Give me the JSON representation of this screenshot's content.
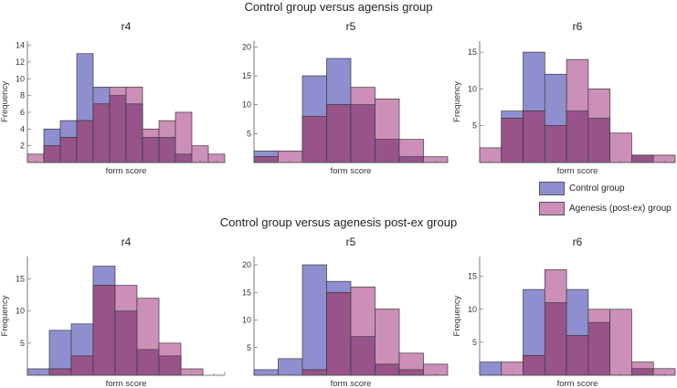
{
  "figure": {
    "top_title": "Control group versus agensis group",
    "bottom_title": "Control group versus agenesis post-ex group"
  },
  "colors": {
    "control": "#8f8fd0",
    "agenesis": "#cc8fb7",
    "overlap": "#98538b",
    "edge": "#3a3a3a"
  },
  "legend": {
    "control": "Control group",
    "agenesis": "Agenesis (post-ex) group"
  },
  "chart_data": [
    {
      "type": "bar",
      "panel": "top-left",
      "title": "r4",
      "xlabel": "form score",
      "ylabel": "Frequency",
      "ylim": [
        0,
        14.5
      ],
      "yticks": [
        2,
        4,
        6,
        8,
        10,
        12,
        14
      ],
      "bins": 12,
      "series": [
        {
          "name": "Control group",
          "values": [
            0,
            4,
            5,
            13,
            9,
            8,
            7,
            3,
            3,
            1,
            0,
            0
          ]
        },
        {
          "name": "Agenesis (post-ex) group",
          "values": [
            1,
            2,
            3,
            5,
            7,
            9,
            9,
            4,
            5,
            6,
            2,
            1
          ]
        }
      ]
    },
    {
      "type": "bar",
      "panel": "top-middle",
      "title": "r5",
      "xlabel": "form score",
      "ylabel": "",
      "ylim": [
        0,
        21
      ],
      "yticks": [
        5,
        10,
        15,
        20
      ],
      "bins": 8,
      "series": [
        {
          "name": "Control group",
          "values": [
            2,
            0,
            15,
            18,
            10,
            4,
            1,
            0
          ]
        },
        {
          "name": "Agenesis (post-ex) group",
          "values": [
            1,
            2,
            8,
            10,
            13,
            11,
            4,
            1
          ]
        }
      ]
    },
    {
      "type": "bar",
      "panel": "top-right",
      "title": "r6",
      "xlabel": "form score",
      "ylabel": "Frequency",
      "ylim": [
        0,
        16.5
      ],
      "yticks": [
        5,
        10,
        15
      ],
      "bins": 9,
      "series": [
        {
          "name": "Control group",
          "values": [
            0,
            7,
            15,
            12,
            7,
            6,
            0,
            1,
            0
          ]
        },
        {
          "name": "Agenesis (post-ex) group",
          "values": [
            2,
            6,
            7,
            5,
            14,
            10,
            4,
            1,
            1
          ]
        }
      ]
    },
    {
      "type": "bar",
      "panel": "bottom-left",
      "title": "r4",
      "xlabel": "form score",
      "ylabel": "Frequency",
      "ylim": [
        0,
        18.5
      ],
      "yticks": [
        5,
        10,
        15
      ],
      "bins": 9,
      "series": [
        {
          "name": "Control group",
          "values": [
            1,
            7,
            8,
            17,
            10,
            4,
            3,
            0,
            0
          ]
        },
        {
          "name": "Agenesis (post-ex) group",
          "values": [
            0,
            1,
            3,
            14,
            14,
            12,
            5,
            1,
            0
          ]
        }
      ]
    },
    {
      "type": "bar",
      "panel": "bottom-middle",
      "title": "r5",
      "xlabel": "form score",
      "ylabel": "",
      "ylim": [
        0,
        21.5
      ],
      "yticks": [
        5,
        10,
        15,
        20
      ],
      "bins": 8,
      "series": [
        {
          "name": "Control group",
          "values": [
            1,
            3,
            20,
            17,
            7,
            2,
            1,
            0
          ]
        },
        {
          "name": "Agenesis (post-ex) group",
          "values": [
            0,
            0,
            1,
            15,
            16,
            12,
            4,
            2
          ]
        }
      ]
    },
    {
      "type": "bar",
      "panel": "bottom-right",
      "title": "r6",
      "xlabel": "form score",
      "ylabel": "Frequency",
      "ylim": [
        0,
        18
      ],
      "yticks": [
        5,
        10,
        15
      ],
      "bins": 9,
      "series": [
        {
          "name": "Control group",
          "values": [
            2,
            0,
            13,
            11,
            13,
            8,
            0,
            1,
            0
          ]
        },
        {
          "name": "Agenesis (post-ex) group",
          "values": [
            0,
            2,
            3,
            16,
            6,
            10,
            10,
            2,
            1
          ]
        }
      ]
    }
  ]
}
